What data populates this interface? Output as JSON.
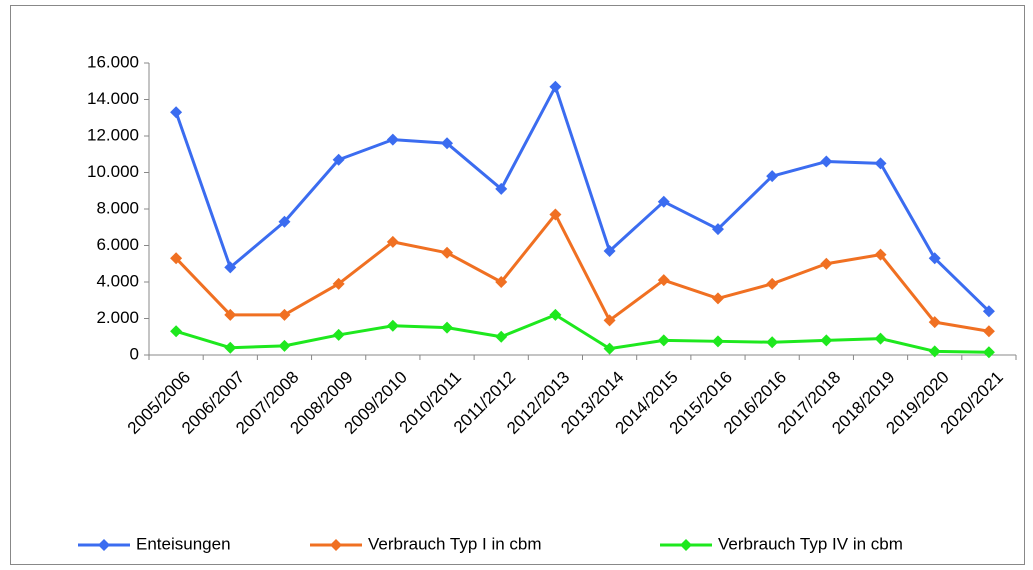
{
  "chart_data": {
    "type": "line",
    "categories": [
      "2005/2006",
      "2006/2007",
      "2007/2008",
      "2008/2009",
      "2009/2010",
      "2010/2011",
      "2011/2012",
      "2012/2013",
      "2013/2014",
      "2014/2015",
      "2015/2016",
      "2016/2016",
      "2017/2018",
      "2018/2019",
      "2019/2020",
      "2020/2021"
    ],
    "series": [
      {
        "name": "Enteisungen",
        "color": "#3b6cf0",
        "values": [
          13300,
          4800,
          7300,
          10700,
          11800,
          11600,
          9100,
          14700,
          5700,
          8400,
          6900,
          9800,
          10600,
          10500,
          5300,
          2400
        ]
      },
      {
        "name": "Verbrauch Typ I in cbm",
        "color": "#f07022",
        "values": [
          5300,
          2200,
          2200,
          3900,
          6200,
          5600,
          4000,
          7700,
          1900,
          4100,
          3100,
          3900,
          5000,
          5500,
          1800,
          1300
        ]
      },
      {
        "name": "Verbrauch Typ IV in cbm",
        "color": "#1ee81e",
        "values": [
          1300,
          400,
          500,
          1100,
          1600,
          1500,
          1000,
          2200,
          350,
          800,
          750,
          700,
          800,
          900,
          200,
          150
        ]
      }
    ],
    "ylim": [
      0,
      16000
    ],
    "yticks": [
      0,
      {
        "value": 2000,
        "label": "2.000"
      },
      {
        "value": 4000,
        "label": "4.000"
      },
      {
        "value": 6000,
        "label": "6.000"
      },
      {
        "value": 8000,
        "label": "8.000"
      },
      {
        "value": 10000,
        "label": "10.000"
      },
      {
        "value": 12000,
        "label": "12.000"
      },
      {
        "value": 14000,
        "label": "14.000"
      },
      {
        "value": 16000,
        "label": "16.000"
      }
    ],
    "grid": false,
    "legend": "bottom"
  }
}
